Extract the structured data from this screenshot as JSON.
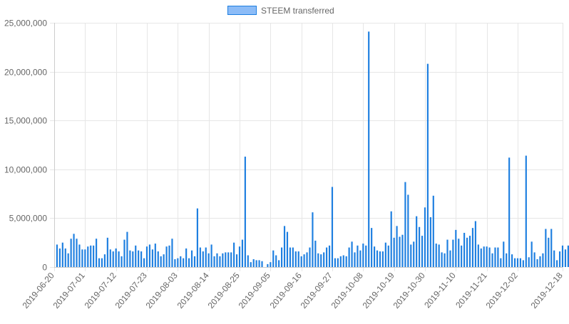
{
  "chart_data": {
    "type": "bar",
    "legend": {
      "label": "STEEM transferred",
      "placement": "top-center"
    },
    "colors": {
      "bar": "#1e7fe0",
      "legend_fill": "#8cbcf7",
      "legend_stroke": "#1e7fe0",
      "grid": "#e6e6e6",
      "text": "#666666"
    },
    "grid": true,
    "x_start": "2019-06-20",
    "x_end": "2019-12-18",
    "x_ticks": [
      "2019-06-20",
      "2019-07-01",
      "2019-07-12",
      "2019-07-23",
      "2019-08-03",
      "2019-08-14",
      "2019-08-25",
      "2019-09-05",
      "2019-09-16",
      "2019-09-27",
      "2019-10-08",
      "2019-10-19",
      "2019-10-30",
      "2019-11-10",
      "2019-11-21",
      "2019-12-02",
      "2019-12-18"
    ],
    "ylim": [
      0,
      25000000
    ],
    "y_ticks": [
      0,
      5000000,
      10000000,
      15000000,
      20000000,
      25000000
    ],
    "y_tick_labels": [
      "0",
      "5,000,000",
      "10,000,000",
      "15,000,000",
      "20,000,000",
      "25,000,000"
    ],
    "values": [
      2300000,
      1900000,
      2500000,
      1900000,
      1400000,
      2900000,
      3400000,
      2900000,
      2300000,
      1800000,
      1800000,
      2100000,
      2200000,
      2200000,
      2900000,
      900000,
      900000,
      1300000,
      3000000,
      1800000,
      1600000,
      1900000,
      1600000,
      1100000,
      2800000,
      3600000,
      1700000,
      1600000,
      2200000,
      1700000,
      1600000,
      900000,
      2100000,
      2300000,
      1800000,
      2400000,
      1600000,
      1100000,
      1300000,
      2100000,
      2200000,
      2900000,
      800000,
      900000,
      1100000,
      900000,
      1900000,
      900000,
      1700000,
      1100000,
      6000000,
      2000000,
      1600000,
      2000000,
      1400000,
      2300000,
      1100000,
      1400000,
      1100000,
      1400000,
      1500000,
      1500000,
      1500000,
      2500000,
      1300000,
      2100000,
      2800000,
      11300000,
      1200000,
      500000,
      800000,
      700000,
      700000,
      600000,
      0,
      300000,
      500000,
      1700000,
      1200000,
      700000,
      2000000,
      4200000,
      3600000,
      2000000,
      2000000,
      1600000,
      1600000,
      1100000,
      1300000,
      1500000,
      2000000,
      5600000,
      2700000,
      1400000,
      1300000,
      1500000,
      2000000,
      2200000,
      8200000,
      900000,
      900000,
      1100000,
      1200000,
      1100000,
      2000000,
      2600000,
      1500000,
      2200000,
      1700000,
      2400000,
      2200000,
      24100000,
      4000000,
      2100000,
      1700000,
      1600000,
      1600000,
      2500000,
      2200000,
      5700000,
      3000000,
      4200000,
      3100000,
      3300000,
      8700000,
      7400000,
      2300000,
      2600000,
      5200000,
      4100000,
      3200000,
      6100000,
      20800000,
      5100000,
      7300000,
      2400000,
      2300000,
      1500000,
      1400000,
      2800000,
      1700000,
      2800000,
      3800000,
      2900000,
      2200000,
      3500000,
      3000000,
      3200000,
      4000000,
      4700000,
      2300000,
      1900000,
      2100000,
      2100000,
      2000000,
      1400000,
      2000000,
      2000000,
      900000,
      2600000,
      1400000,
      11200000,
      1300000,
      900000,
      900000,
      900000,
      700000,
      11400000,
      1000000,
      2600000,
      1500000,
      800000,
      1100000,
      1400000,
      3900000,
      3000000,
      3900000,
      1700000,
      700000,
      1600000,
      2200000,
      1800000,
      2200000
    ]
  }
}
